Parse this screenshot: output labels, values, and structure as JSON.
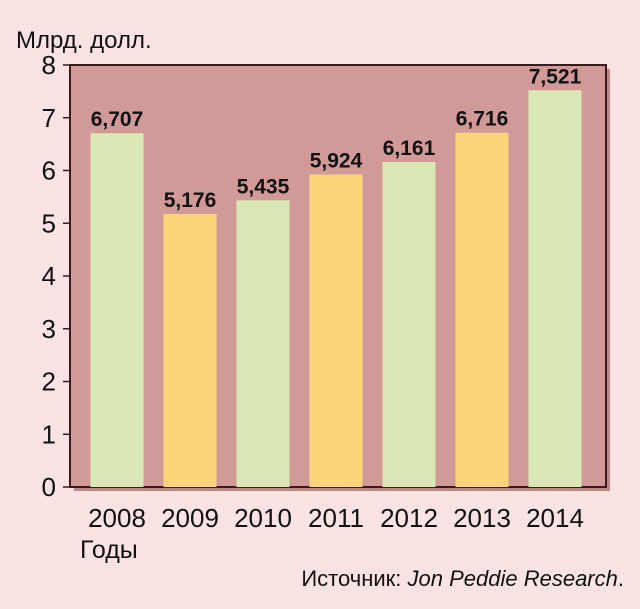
{
  "chart_data": {
    "type": "bar",
    "ylabel": "Млрд. долл.",
    "xlabel": "Годы",
    "categories": [
      "2008",
      "2009",
      "2010",
      "2011",
      "2012",
      "2013",
      "2014"
    ],
    "values": [
      6.707,
      5.176,
      5.435,
      5.924,
      6.161,
      6.716,
      7.521
    ],
    "data_labels": [
      "6,707",
      "5,176",
      "5,435",
      "5,924",
      "6,161",
      "6,716",
      "7,521"
    ],
    "ylim": [
      0,
      8
    ],
    "yticks": [
      "0",
      "1",
      "2",
      "3",
      "4",
      "5",
      "6",
      "7",
      "8"
    ],
    "grid": false,
    "legend": "none",
    "colors": {
      "plot_background": "#d19a98",
      "plot_border": "#3a1a1a",
      "bar_green": "#d9e8b4",
      "bar_yellow": "#fad47a",
      "page_background": "#fbe3e3"
    },
    "bar_color_pattern": [
      "green",
      "yellow",
      "green",
      "yellow",
      "green",
      "yellow",
      "green"
    ]
  },
  "source": {
    "prefix": "Источник: ",
    "name": "Jon Peddie Research",
    "suffix": "."
  }
}
